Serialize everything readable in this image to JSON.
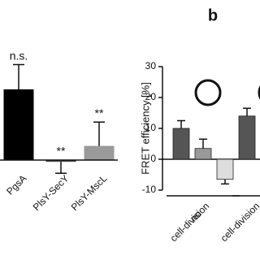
{
  "chart_data": [
    {
      "type": "bar",
      "categories": [
        "PgsA",
        "PlsY-SecY",
        "PlsY-MscL"
      ],
      "values": [
        80,
        -2,
        16
      ],
      "errors": [
        28,
        13,
        27
      ],
      "colors": [
        "#000000",
        "#444444",
        "#9a9a9a"
      ],
      "annotations": [
        "n.s.",
        "**",
        "**"
      ],
      "ylim": [
        -30,
        120
      ]
    },
    {
      "type": "grouped-bar",
      "panel_label": "b",
      "ylabel": "FRET efficiency [%]",
      "colors": [
        "#555555",
        "#999999",
        "#dddddd"
      ],
      "groups": [
        {
          "label_lines": [
            "no",
            "cell-division"
          ],
          "values": [
            10,
            3.5,
            -6.5
          ],
          "errors": [
            2.5,
            3,
            1.5
          ]
        },
        {
          "label_lines": [
            "cell-division"
          ],
          "values": [
            14
          ],
          "errors": [
            2.5
          ]
        }
      ],
      "ylim": [
        -10,
        30
      ],
      "yticks": [
        -10,
        0,
        10,
        20,
        30
      ]
    }
  ]
}
